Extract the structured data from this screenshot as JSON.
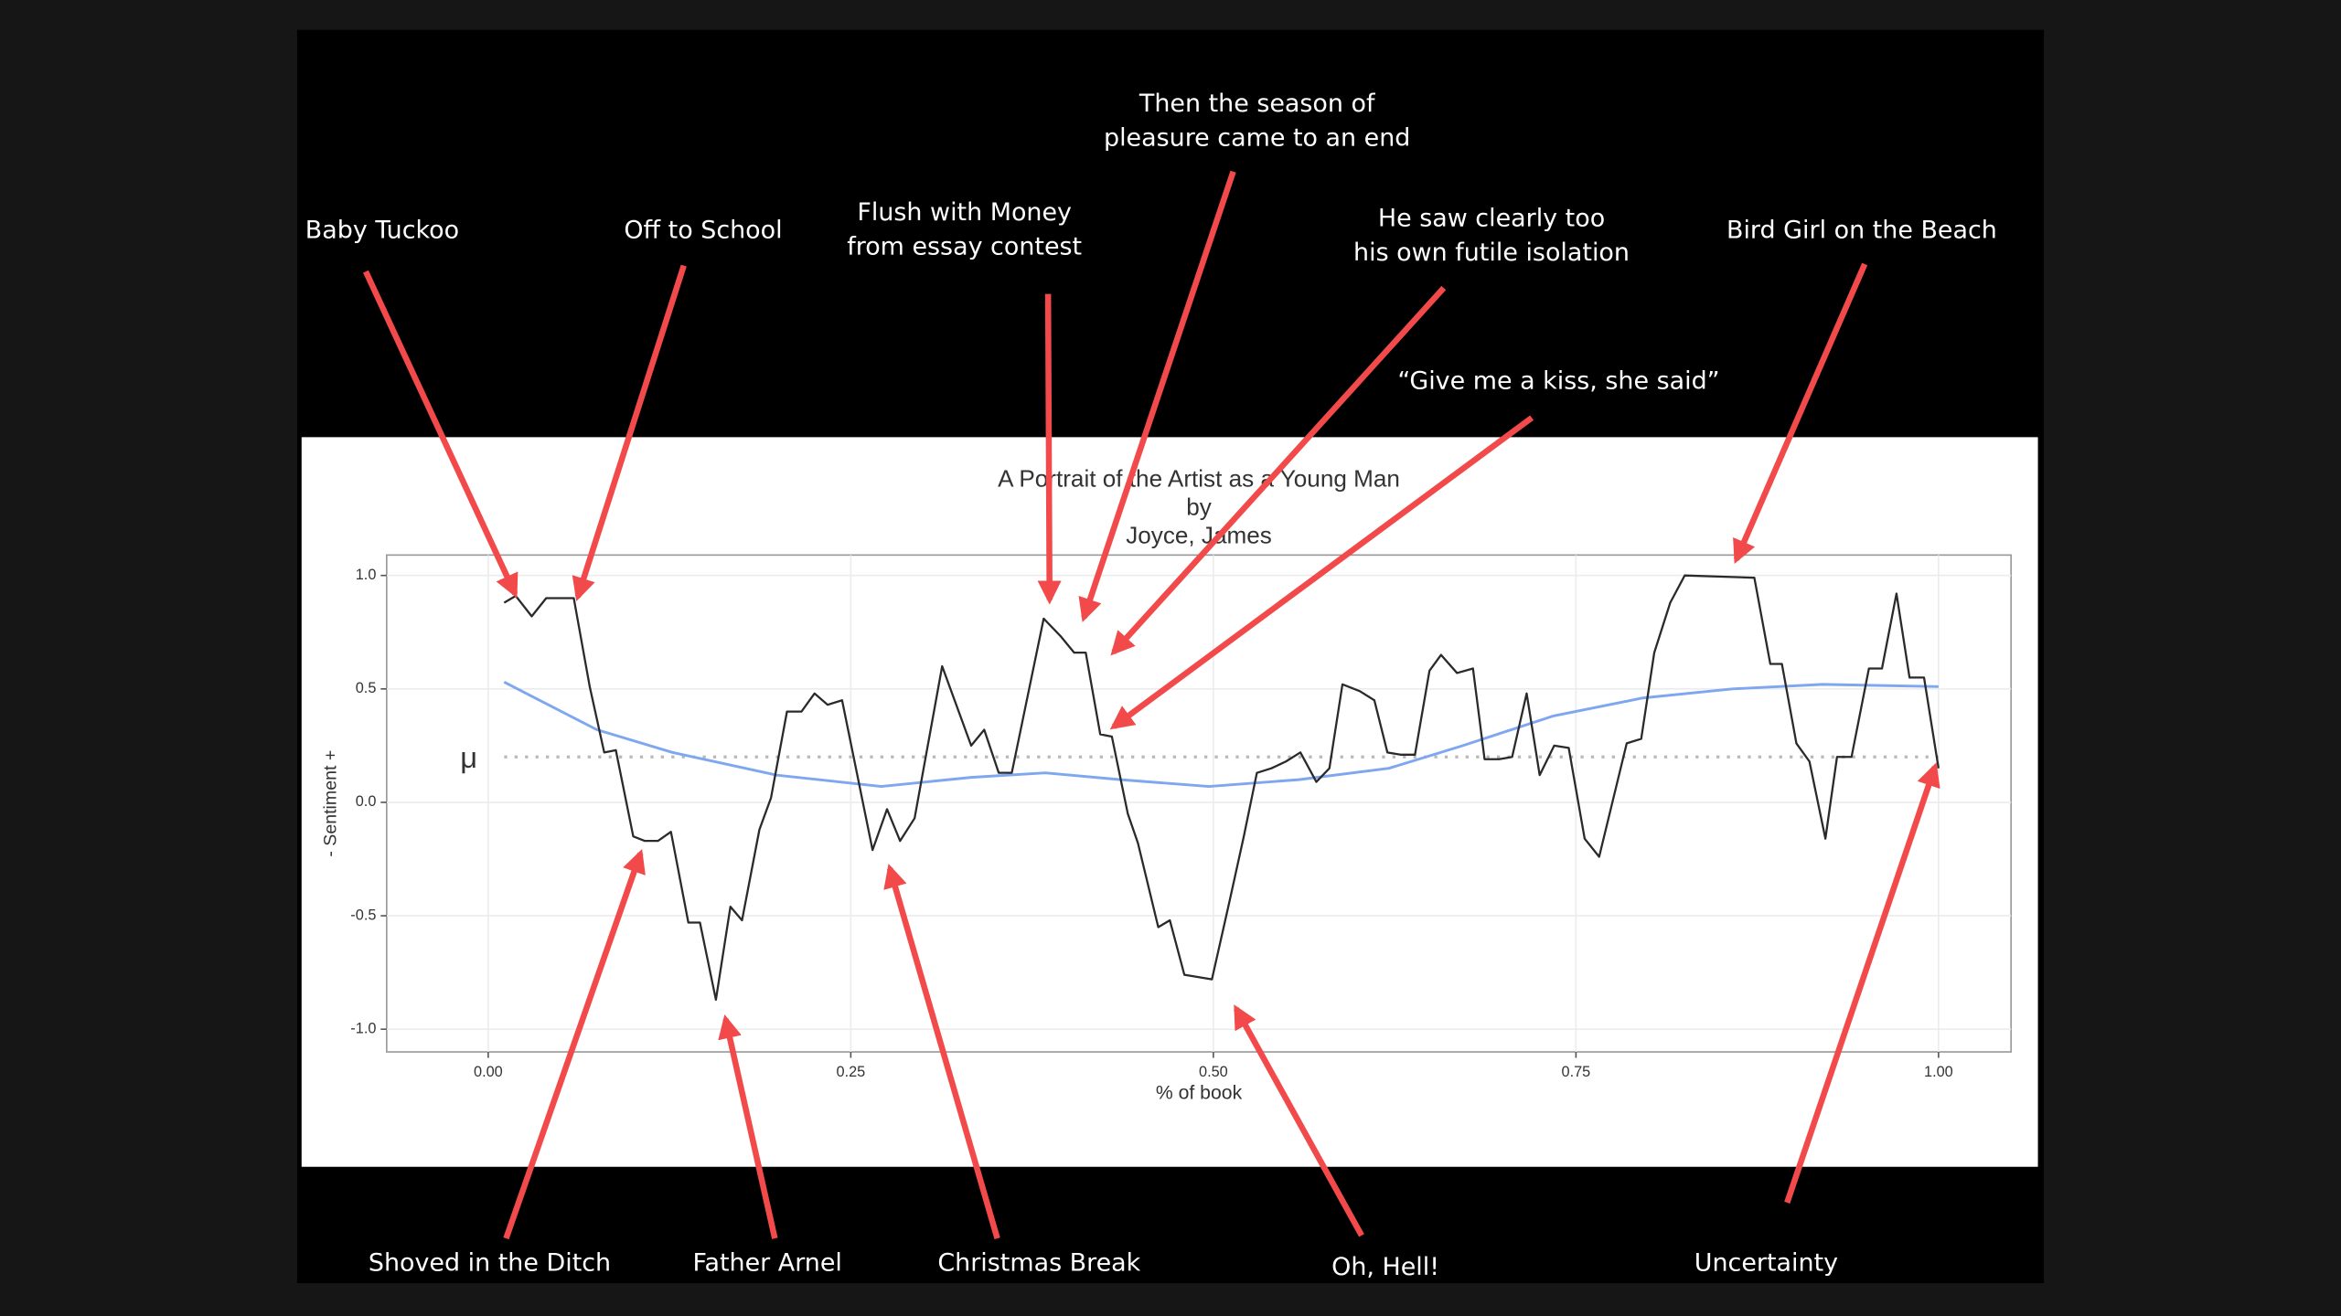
{
  "chart_data": {
    "type": "line",
    "title": [
      "A Portrait of the Artist as a Young Man",
      "by",
      "Joyce, James"
    ],
    "x_label": "% of book",
    "y_label": "- Sentiment +",
    "xlim": [
      -0.07,
      1.05
    ],
    "ylim": [
      -1.1,
      1.09
    ],
    "xticks": [
      {
        "value": 0,
        "label": "0.00"
      },
      {
        "value": 0.25,
        "label": "0.25"
      },
      {
        "value": 0.5,
        "label": "0.50"
      },
      {
        "value": 0.75,
        "label": "0.75"
      },
      {
        "value": 1,
        "label": "1.00"
      }
    ],
    "yticks": [
      {
        "value": -1,
        "label": "-1.0"
      },
      {
        "value": -0.5,
        "label": "-0.5"
      },
      {
        "value": 0,
        "label": "0.0"
      },
      {
        "value": 0.5,
        "label": "0.5"
      },
      {
        "value": 1,
        "label": "1.0"
      }
    ],
    "grid": true,
    "mean": {
      "label": "μ",
      "value": 0.2,
      "color": "#b8b8b8"
    },
    "series": [
      {
        "color": "#2a2a2a",
        "x": [
          0.011,
          0.019,
          0.03,
          0.04,
          0.059,
          0.07,
          0.08,
          0.088,
          0.1,
          0.108,
          0.117,
          0.126,
          0.138,
          0.146,
          0.157,
          0.167,
          0.175,
          0.187,
          0.195,
          0.206,
          0.216,
          0.225,
          0.234,
          0.244,
          0.265,
          0.275,
          0.284,
          0.294,
          0.313,
          0.333,
          0.342,
          0.352,
          0.361,
          0.383,
          0.395,
          0.404,
          0.412,
          0.422,
          0.43,
          0.441,
          0.448,
          0.462,
          0.47,
          0.48,
          0.499,
          0.511,
          0.521,
          0.53,
          0.54,
          0.55,
          0.56,
          0.571,
          0.58,
          0.589,
          0.601,
          0.611,
          0.62,
          0.629,
          0.639,
          0.649,
          0.657,
          0.668,
          0.679,
          0.687,
          0.697,
          0.706,
          0.716,
          0.725,
          0.735,
          0.745,
          0.756,
          0.766,
          0.785,
          0.795,
          0.804,
          0.815,
          0.825,
          0.873,
          0.884,
          0.892,
          0.902,
          0.911,
          0.922,
          0.93,
          0.94,
          0.952,
          0.961,
          0.971,
          0.98,
          0.99,
          1.0
        ],
        "values": [
          0.88,
          0.91,
          0.82,
          0.9,
          0.9,
          0.51,
          0.22,
          0.23,
          -0.15,
          -0.17,
          -0.17,
          -0.13,
          -0.53,
          -0.53,
          -0.87,
          -0.46,
          -0.52,
          -0.12,
          0.02,
          0.4,
          0.4,
          0.48,
          0.43,
          0.45,
          -0.21,
          -0.03,
          -0.17,
          -0.07,
          0.6,
          0.25,
          0.32,
          0.13,
          0.13,
          0.81,
          0.73,
          0.66,
          0.66,
          0.3,
          0.29,
          -0.05,
          -0.18,
          -0.55,
          -0.52,
          -0.76,
          -0.78,
          -0.44,
          -0.15,
          0.13,
          0.15,
          0.18,
          0.22,
          0.09,
          0.15,
          0.52,
          0.49,
          0.45,
          0.22,
          0.21,
          0.21,
          0.58,
          0.65,
          0.57,
          0.59,
          0.19,
          0.19,
          0.2,
          0.48,
          0.12,
          0.25,
          0.24,
          -0.16,
          -0.24,
          0.26,
          0.28,
          0.66,
          0.88,
          1.0,
          0.99,
          0.61,
          0.61,
          0.26,
          0.18,
          -0.16,
          0.2,
          0.2,
          0.59,
          0.59,
          0.92,
          0.55,
          0.55,
          0.15
        ]
      },
      {
        "color": "#7ea7ef",
        "x": [
          0.011,
          0.075,
          0.127,
          0.199,
          0.271,
          0.333,
          0.384,
          0.436,
          0.497,
          0.559,
          0.621,
          0.672,
          0.734,
          0.796,
          0.858,
          0.92,
          1.0
        ],
        "values": [
          0.53,
          0.32,
          0.22,
          0.12,
          0.07,
          0.11,
          0.13,
          0.1,
          0.07,
          0.1,
          0.15,
          0.25,
          0.38,
          0.46,
          0.5,
          0.52,
          0.51
        ]
      }
    ],
    "annotation_color": "#f24a4a",
    "annotations": [
      [
        "Baby Tuckoo"
      ],
      [
        "Off to School"
      ],
      [
        "Flush with Money",
        "from essay contest"
      ],
      [
        "Then the season of",
        "pleasure came to an end"
      ],
      [
        "He saw clearly too",
        "his own futile isolation"
      ],
      [
        "“Give me a kiss, she said”"
      ],
      [
        "Bird Girl on the Beach"
      ],
      [
        "Shoved in the Ditch"
      ],
      [
        "Father Arnel"
      ],
      [
        "Christmas Break"
      ],
      [
        "Oh, Hell!"
      ],
      [
        "Uncertainty"
      ]
    ]
  }
}
